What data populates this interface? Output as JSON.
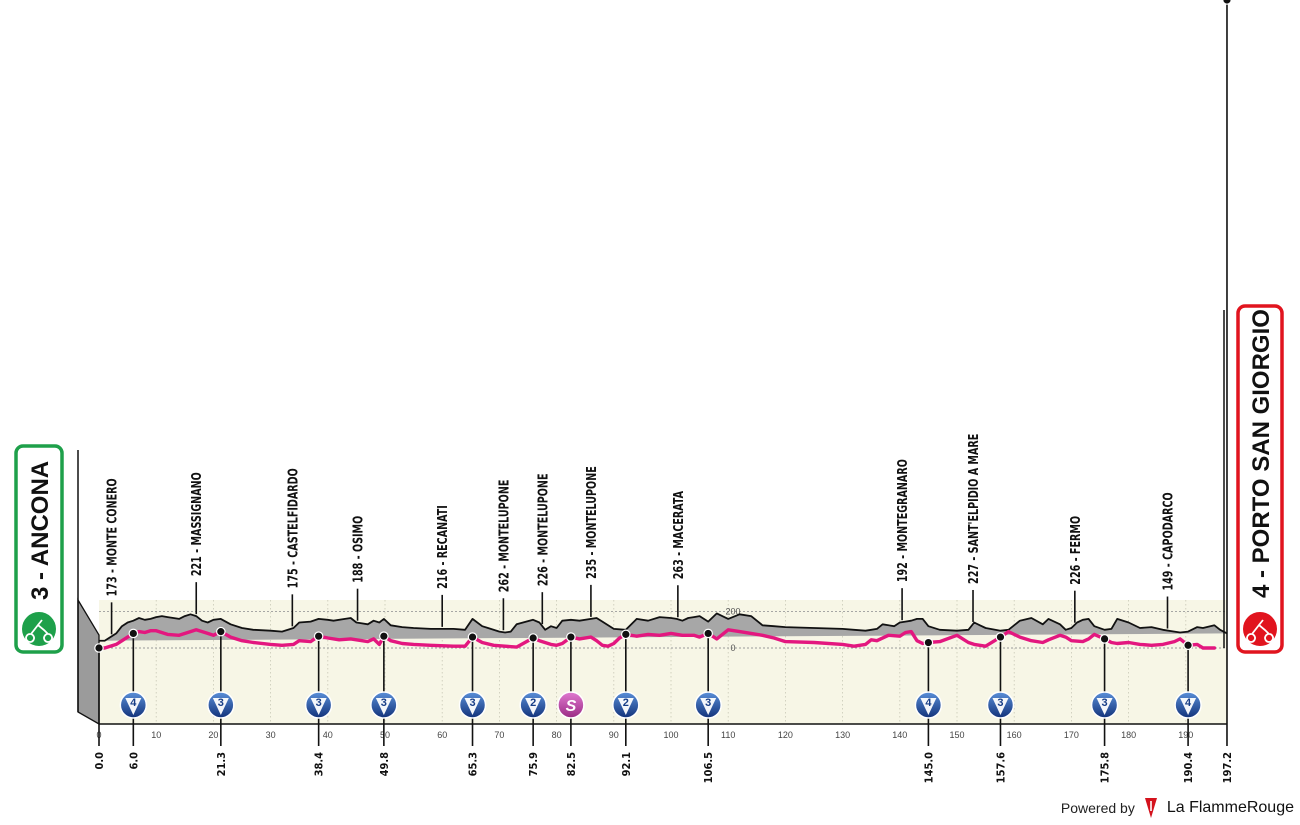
{
  "chart_data": {
    "type": "area",
    "start": {
      "place": "3 - ANCONA"
    },
    "finish": {
      "place": "4 - PORTO SAN GIORGIO"
    },
    "x_ticks": [
      0,
      10,
      20,
      30,
      40,
      50,
      60,
      70,
      80,
      90,
      100,
      110,
      120,
      130,
      140,
      150,
      160,
      170,
      180,
      190
    ],
    "elevation_ticks": [
      {
        "alt": 200,
        "label": "200"
      },
      {
        "alt": 0,
        "label": "0"
      }
    ],
    "checkpoints": [
      {
        "km_label": "0.0",
        "km": 0.0
      },
      {
        "km_label": "6.0",
        "km": 6.0,
        "cat": "4",
        "type": "climb"
      },
      {
        "km_label": "21.3",
        "km": 21.3,
        "cat": "3",
        "type": "climb"
      },
      {
        "km_label": "38.4",
        "km": 38.4,
        "cat": "3",
        "type": "climb"
      },
      {
        "km_label": "49.8",
        "km": 49.8,
        "cat": "3",
        "type": "climb"
      },
      {
        "km_label": "65.3",
        "km": 65.3,
        "cat": "3",
        "type": "climb"
      },
      {
        "km_label": "75.9",
        "km": 75.9,
        "cat": "2",
        "type": "climb"
      },
      {
        "km_label": "82.5",
        "km": 82.5,
        "cat": "S",
        "type": "sprint"
      },
      {
        "km_label": "92.1",
        "km": 92.1,
        "cat": "2",
        "type": "climb"
      },
      {
        "km_label": "106.5",
        "km": 106.5,
        "cat": "3",
        "type": "climb"
      },
      {
        "km_label": "145.0",
        "km": 145.0,
        "cat": "4",
        "type": "climb"
      },
      {
        "km_label": "157.6",
        "km": 157.6,
        "cat": "3",
        "type": "climb"
      },
      {
        "km_label": "175.8",
        "km": 175.8,
        "cat": "3",
        "type": "climb"
      },
      {
        "km_label": "190.4",
        "km": 190.4,
        "cat": "4",
        "type": "climb"
      },
      {
        "km_label": "197.2",
        "km": 197.2
      }
    ],
    "place_labels": [
      {
        "text": "173 - MONTE CONERO",
        "km": 2.2
      },
      {
        "text": "221 - MASSIGNANO",
        "km": 17.0
      },
      {
        "text": "175 - CASTELFIDARDO",
        "km": 33.8
      },
      {
        "text": "188 - OSIMO",
        "km": 45.2
      },
      {
        "text": "216 - RECANATI",
        "km": 60.0
      },
      {
        "text": "262 - MONTELUPONE",
        "km": 70.7
      },
      {
        "text": "226 - MONTELUPONE",
        "km": 77.5
      },
      {
        "text": "235 - MONTELUPONE",
        "km": 86.0
      },
      {
        "text": "263 - MACERATA",
        "km": 101.2
      },
      {
        "text": "192 - MONTEGRANARO",
        "km": 140.4
      },
      {
        "text": "227 - SANT'ELPIDIO A MARE",
        "km": 152.8
      },
      {
        "text": "226 - FERMO",
        "km": 170.6
      },
      {
        "text": "149 - CAPODARCO",
        "km": 186.8
      }
    ],
    "profile": {
      "km": [
        0,
        1,
        3,
        4,
        5,
        6,
        7,
        8,
        9,
        10,
        11,
        12,
        13,
        14,
        15,
        16,
        17,
        18,
        19,
        20,
        21.3,
        23,
        25,
        27,
        30,
        32,
        34,
        35,
        37,
        38.4,
        40,
        41,
        43,
        44,
        45,
        46,
        47,
        48,
        49,
        49.8,
        51,
        53,
        55,
        58,
        62,
        64,
        65.3,
        67,
        68,
        70,
        71,
        72,
        73,
        75.9,
        77,
        78,
        79,
        80,
        81,
        82.5,
        84,
        86,
        87,
        88,
        89,
        90,
        92.1,
        94,
        96,
        98,
        100,
        101,
        102,
        103,
        104,
        105,
        106.5,
        108,
        110,
        112,
        114,
        116,
        118,
        120,
        125,
        130,
        132,
        134,
        135,
        136,
        137,
        139,
        140,
        141,
        142,
        143,
        144,
        145,
        147,
        150,
        152,
        153,
        154,
        155,
        157.6,
        159,
        161,
        163,
        165,
        166,
        168,
        169,
        170,
        171,
        172,
        173,
        174,
        175.8,
        177,
        178,
        180,
        182,
        184,
        186,
        188,
        189,
        190.4,
        192,
        193,
        195,
        196,
        197.2
      ],
      "elev": [
        40,
        40,
        80,
        120,
        140,
        150,
        165,
        155,
        160,
        170,
        175,
        170,
        165,
        160,
        175,
        185,
        175,
        150,
        140,
        155,
        160,
        130,
        110,
        100,
        95,
        90,
        110,
        140,
        145,
        160,
        155,
        150,
        160,
        165,
        140,
        135,
        130,
        150,
        140,
        160,
        125,
        115,
        110,
        105,
        105,
        100,
        160,
        120,
        110,
        90,
        85,
        90,
        130,
        155,
        140,
        100,
        120,
        110,
        150,
        155,
        150,
        160,
        165,
        145,
        125,
        105,
        100,
        160,
        150,
        170,
        165,
        160,
        150,
        165,
        170,
        175,
        145,
        190,
        160,
        185,
        175,
        125,
        120,
        115,
        110,
        105,
        100,
        95,
        100,
        105,
        130,
        120,
        140,
        145,
        150,
        160,
        160,
        120,
        100,
        95,
        100,
        140,
        125,
        110,
        95,
        100,
        150,
        165,
        130,
        160,
        130,
        100,
        110,
        140,
        155,
        160,
        120,
        100,
        105,
        160,
        140,
        110,
        115,
        100,
        90,
        85,
        90,
        115,
        110,
        125,
        100,
        80,
        60,
        35,
        5
      ]
    },
    "markers": {
      "km": [
        0,
        1,
        3,
        5,
        6,
        7,
        8,
        9,
        10,
        12,
        14,
        16,
        17,
        19,
        20,
        21.3,
        23,
        25,
        27,
        30,
        32,
        34,
        35,
        37,
        38.4,
        40,
        42,
        44,
        46,
        47,
        48,
        49,
        49.8,
        51,
        53,
        55,
        58,
        62,
        64,
        65.3,
        67,
        69,
        71,
        73,
        75.9,
        77,
        79,
        80,
        81,
        82.5,
        84,
        86,
        87,
        88,
        89,
        90,
        91,
        92.1,
        94,
        96,
        98,
        100,
        102,
        104,
        105,
        106.5,
        108,
        110,
        112,
        114,
        116,
        118,
        120,
        125,
        130,
        132,
        134,
        135,
        136,
        138,
        140,
        141,
        142,
        143,
        144,
        145,
        147,
        150,
        152,
        153,
        154,
        155,
        157.6,
        159,
        161,
        163,
        165,
        166,
        168,
        169,
        170,
        172,
        173,
        174,
        175.8,
        177,
        178,
        180,
        182,
        184,
        186,
        188,
        189,
        190.4,
        192,
        193,
        195,
        196,
        197.2
      ],
      "elev": [
        0,
        0,
        20,
        60,
        80,
        90,
        85,
        95,
        95,
        75,
        70,
        90,
        100,
        80,
        70,
        90,
        60,
        40,
        30,
        20,
        15,
        20,
        40,
        35,
        65,
        55,
        45,
        50,
        40,
        35,
        50,
        20,
        65,
        40,
        25,
        20,
        15,
        10,
        10,
        60,
        30,
        15,
        10,
        5,
        55,
        40,
        20,
        15,
        25,
        60,
        50,
        60,
        40,
        15,
        10,
        25,
        55,
        75,
        65,
        75,
        70,
        80,
        70,
        70,
        60,
        80,
        50,
        100,
        90,
        80,
        70,
        55,
        35,
        30,
        20,
        10,
        20,
        45,
        40,
        70,
        65,
        85,
        90,
        40,
        25,
        30,
        35,
        70,
        30,
        20,
        15,
        10,
        60,
        90,
        60,
        40,
        30,
        45,
        70,
        60,
        40,
        35,
        50,
        75,
        50,
        30,
        25,
        30,
        20,
        15,
        20,
        35,
        50,
        15,
        20,
        0,
        0
      ]
    }
  },
  "footer": {
    "powered": "Powered by",
    "brand": "La FlammeRouge"
  },
  "colors": {
    "profile_fill": "#a7a7a7",
    "route_line": "#e3177f",
    "plot_bg": "#f7f6e6",
    "start": "#1ea04a",
    "finish": "#e1141e",
    "climb_badge": "#1f56a8",
    "sprint_badge": "#c24ba3"
  }
}
